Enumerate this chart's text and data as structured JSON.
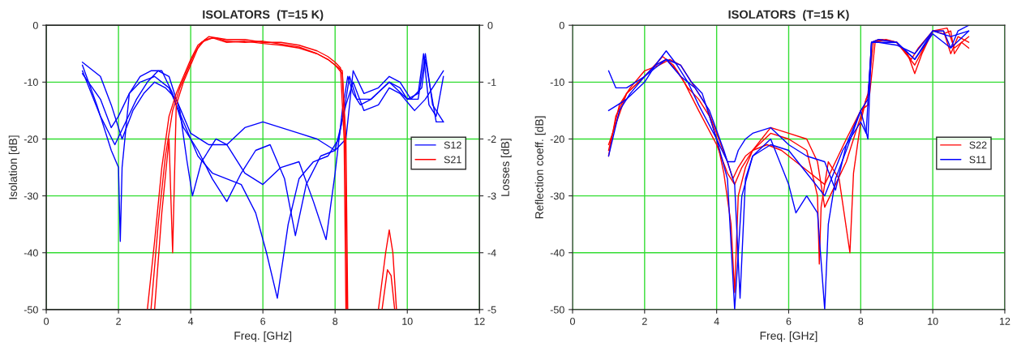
{
  "chart_data": [
    {
      "type": "line",
      "title": "ISOLATORS  (T=15 K)",
      "xlabel": "Freq. [GHz]",
      "ylabel": "Isolation [dB]",
      "y2label": "Losses [dB]",
      "xlim": [
        0,
        12
      ],
      "xticks": [
        0,
        2,
        4,
        6,
        8,
        10,
        12
      ],
      "ylim": [
        -50,
        0
      ],
      "yticks": [
        -50,
        -40,
        -30,
        -20,
        -10,
        0
      ],
      "y2lim": [
        -5,
        0
      ],
      "y2ticks": [
        -5,
        -4,
        -3,
        -2,
        -1,
        0
      ],
      "grid": true,
      "legend": "right",
      "series": [
        {
          "name": "S12",
          "color": "#0000ff",
          "x": [
            1,
            1.4,
            1.8,
            2.0,
            2.05,
            2.1,
            2.3,
            2.6,
            3.0,
            3.4,
            3.8,
            4.2,
            4.6,
            5.0,
            5.4,
            5.8,
            6.1,
            6.4,
            6.7,
            7.0,
            7.4,
            7.8,
            8.1,
            8.3,
            8.4,
            8.6,
            9.0,
            9.5,
            10.0,
            10.3,
            10.45,
            10.6,
            10.8,
            11
          ],
          "values": [
            -7,
            -14,
            -22,
            -25,
            -38,
            -25,
            -12,
            -10,
            -9,
            -11,
            -17,
            -23,
            -26,
            -27,
            -28,
            -33,
            -40,
            -48,
            -35,
            -27,
            -24,
            -23,
            -20,
            -13,
            -9,
            -13,
            -13,
            -10,
            -13,
            -12,
            -5,
            -14,
            -16,
            -9
          ]
        },
        {
          "color": "#0000ff",
          "x": [
            1,
            1.5,
            1.9,
            2.2,
            2.5,
            2.8,
            3.1,
            3.4,
            3.7,
            3.9,
            4.05,
            4.3,
            4.7,
            5.0,
            5.5,
            6.0,
            6.5,
            7.0,
            7.4,
            7.75,
            8.0,
            8.2,
            8.35,
            8.5,
            8.7,
            9.0,
            9.5,
            9.8,
            10.0,
            10.3,
            10.5,
            10.7,
            11
          ],
          "values": [
            -8,
            -16,
            -21,
            -17,
            -13,
            -10,
            -8,
            -9,
            -15,
            -24,
            -30,
            -24,
            -20,
            -21,
            -26,
            -28,
            -25,
            -24,
            -31,
            -37.7,
            -26,
            -15,
            -9,
            -12,
            -14,
            -13,
            -10,
            -11,
            -13,
            -13,
            -5,
            -14,
            -17
          ]
        },
        {
          "color": "#0000ff",
          "x": [
            1,
            1.5,
            1.8,
            2.0,
            2.3,
            2.6,
            2.9,
            3.2,
            3.5,
            3.8,
            4.2,
            4.6,
            5.0,
            5.4,
            5.8,
            6.2,
            6.6,
            6.9,
            7.2,
            7.6,
            8.0,
            8.3,
            8.5,
            8.8,
            9.2,
            9.5,
            9.8,
            10.2,
            10.5,
            11
          ],
          "values": [
            -8.5,
            -13,
            -18,
            -16,
            -12,
            -9,
            -8,
            -8,
            -12,
            -18,
            -22,
            -27,
            -31,
            -26,
            -22,
            -21,
            -27,
            -37,
            -28,
            -23,
            -22,
            -14,
            -10,
            -15,
            -14,
            -11,
            -12,
            -15,
            -13,
            -8
          ]
        },
        {
          "color": "#0000ff",
          "x": [
            1,
            1.5,
            1.8,
            2.1,
            2.4,
            2.7,
            3.0,
            3.3,
            3.6,
            4.0,
            4.5,
            5.0,
            5.5,
            6.0,
            6.5,
            7.0,
            7.5,
            8.0,
            8.3,
            8.5,
            8.8,
            9.2,
            9.5,
            9.8,
            10.1,
            10.4,
            10.5,
            10.8,
            11
          ],
          "values": [
            -6.5,
            -9,
            -14,
            -20,
            -15,
            -12,
            -10,
            -11,
            -13,
            -19,
            -21,
            -21,
            -18,
            -17,
            -18,
            -19,
            -20,
            -22,
            -20,
            -8,
            -12,
            -11,
            -9,
            -10,
            -13,
            -11,
            -6,
            -17,
            -17
          ]
        },
        {
          "name": "S21",
          "color": "#ff0000",
          "axis": "y2",
          "x": [
            2.8,
            3.0,
            3.2,
            3.4,
            3.6,
            3.8,
            4.0,
            4.2,
            4.5,
            5.0,
            5.5,
            6.0,
            6.5,
            7.0,
            7.5,
            7.8,
            8.0,
            8.15,
            8.25,
            8.3
          ],
          "values": [
            -5,
            -3.8,
            -2.5,
            -1.6,
            -1.2,
            -0.9,
            -0.6,
            -0.35,
            -0.2,
            -0.25,
            -0.25,
            -0.3,
            -0.3,
            -0.35,
            -0.45,
            -0.55,
            -0.65,
            -0.75,
            -2,
            -5
          ]
        },
        {
          "color": "#ff0000",
          "axis": "y2",
          "x": [
            2.9,
            3.1,
            3.3,
            3.5,
            3.7,
            3.9,
            4.1,
            4.3,
            4.6,
            5.0,
            5.5,
            6.0,
            6.5,
            7.0,
            7.5,
            7.8,
            8.0,
            8.2,
            8.28,
            8.33
          ],
          "values": [
            -5,
            -3.5,
            -2.3,
            -1.5,
            -1.1,
            -0.8,
            -0.5,
            -0.3,
            -0.22,
            -0.3,
            -0.28,
            -0.32,
            -0.35,
            -0.4,
            -0.5,
            -0.6,
            -0.7,
            -0.8,
            -2,
            -5
          ]
        },
        {
          "color": "#ff0000",
          "axis": "y2",
          "x": [
            3.0,
            3.2,
            3.4,
            3.5,
            3.6,
            3.8,
            4.0,
            4.2,
            4.4,
            4.7,
            5.0,
            5.5,
            6.0,
            6.5,
            7.0,
            7.5,
            7.8,
            8.0,
            8.2,
            8.3,
            8.35
          ],
          "values": [
            -5,
            -3.3,
            -2.0,
            -4.0,
            -1.4,
            -1.0,
            -0.7,
            -0.4,
            -0.25,
            -0.22,
            -0.28,
            -0.3,
            -0.28,
            -0.33,
            -0.38,
            -0.5,
            -0.6,
            -0.7,
            -0.85,
            -2,
            -5
          ]
        },
        {
          "color": "#ff0000",
          "axis": "y2",
          "x": [
            9.2,
            9.4,
            9.5,
            9.6,
            9.7
          ],
          "values": [
            -5,
            -4,
            -3.6,
            -4,
            -5
          ]
        },
        {
          "color": "#ff0000",
          "axis": "y2",
          "x": [
            9.3,
            9.45,
            9.55,
            9.65
          ],
          "values": [
            -5,
            -4.3,
            -4.4,
            -5
          ]
        }
      ]
    },
    {
      "type": "line",
      "title": "ISOLATORS  (T=15 K)",
      "xlabel": "Freq. [GHz]",
      "ylabel": "Reflection coeff. [dB]",
      "xlim": [
        0,
        12
      ],
      "xticks": [
        0,
        2,
        4,
        6,
        8,
        10,
        12
      ],
      "ylim": [
        -50,
        0
      ],
      "yticks": [
        -50,
        -40,
        -30,
        -20,
        -10,
        0
      ],
      "grid": true,
      "legend": "right",
      "series": [
        {
          "name": "S22",
          "color": "#ff0000",
          "x": [
            1,
            1.2,
            1.5,
            2,
            2.3,
            2.6,
            2.9,
            3.2,
            3.5,
            3.8,
            4.0,
            4.2,
            4.4,
            4.5,
            4.6,
            4.8,
            5.0,
            5.5,
            6.0,
            6.5,
            6.8,
            6.85,
            6.9,
            7.1,
            7.4,
            7.7,
            7.8,
            8.0,
            8.15,
            8.25,
            8.4,
            8.7,
            9.0,
            9.3,
            9.5,
            9.7,
            10.0,
            10.3,
            10.5,
            10.6,
            10.8,
            11
          ],
          "values": [
            -23,
            -16,
            -12,
            -9,
            -7,
            -6,
            -8,
            -11,
            -13,
            -16,
            -20,
            -26,
            -35,
            -47,
            -30,
            -25,
            -22,
            -19,
            -20,
            -22,
            -30,
            -42,
            -32,
            -24,
            -27,
            -40,
            -26,
            -17,
            -13,
            -12,
            -3,
            -2.5,
            -3,
            -5,
            -8.5,
            -5,
            -1,
            -1.5,
            -1,
            -5,
            -3,
            -4
          ]
        },
        {
          "color": "#ff0000",
          "x": [
            1,
            1.3,
            1.6,
            2,
            2.4,
            2.7,
            3.0,
            3.3,
            3.7,
            4.0,
            4.3,
            4.45,
            4.6,
            4.8,
            5.0,
            5.4,
            5.8,
            6.2,
            6.6,
            7.0,
            7.3,
            7.6,
            8.0,
            8.2,
            8.3,
            8.5,
            9.0,
            9.4,
            9.6,
            10.0,
            10.3,
            10.5,
            10.7,
            11
          ],
          "values": [
            -22,
            -14,
            -11,
            -8,
            -7,
            -6,
            -7,
            -10,
            -14,
            -19,
            -24,
            -27,
            -25,
            -23,
            -22,
            -21,
            -22,
            -24,
            -26,
            -28,
            -24,
            -20,
            -15,
            -14,
            -3,
            -2.5,
            -3,
            -6,
            -4,
            -1,
            -1,
            -5,
            -2,
            -3
          ]
        },
        {
          "color": "#ff0000",
          "x": [
            1,
            1.5,
            2,
            2.5,
            2.8,
            3.1,
            3.5,
            4.0,
            4.3,
            4.5,
            4.7,
            5.0,
            5.5,
            6.0,
            6.5,
            6.8,
            7.0,
            7.3,
            7.6,
            8.0,
            8.2,
            8.35,
            8.6,
            9.0,
            9.5,
            10,
            10.4,
            10.6,
            11
          ],
          "values": [
            -21,
            -12,
            -9,
            -5.5,
            -7,
            -10,
            -15,
            -21,
            -26,
            -28,
            -25,
            -22,
            -18,
            -19,
            -20,
            -24,
            -32,
            -28,
            -24,
            -16,
            -12,
            -3,
            -2.5,
            -3,
            -7,
            -1,
            -0.5,
            -4,
            -2
          ]
        },
        {
          "name": "S11",
          "color": "#0000ff",
          "x": [
            1,
            1.2,
            1.5,
            2,
            2.3,
            2.6,
            2.9,
            3.2,
            3.5,
            4.0,
            4.3,
            4.5,
            4.7,
            5.0,
            5.5,
            6.0,
            6.2,
            6.5,
            6.8,
            7.0,
            7.1,
            7.3,
            7.6,
            8.0,
            8.2,
            8.3,
            8.5,
            9.0,
            9.5,
            10,
            10.3,
            10.5,
            10.7,
            11
          ],
          "values": [
            -8,
            -11,
            -11,
            -9,
            -7,
            -4.5,
            -7,
            -10,
            -14,
            -20,
            -27,
            -50,
            -30,
            -23,
            -20,
            -28,
            -33,
            -30,
            -33,
            -50,
            -35,
            -27,
            -22,
            -15,
            -20,
            -3,
            -2.5,
            -3,
            -6,
            -1,
            -1,
            -4,
            -1,
            0
          ]
        },
        {
          "color": "#0000ff",
          "x": [
            1,
            1.5,
            2,
            2.3,
            2.6,
            3.0,
            3.3,
            3.6,
            4.0,
            4.3,
            4.5,
            4.6,
            4.8,
            5.0,
            5.5,
            6.0,
            6.5,
            7.0,
            7.3,
            7.6,
            8.0,
            8.2,
            8.3,
            8.5,
            9,
            9.5,
            10,
            10.5,
            11
          ],
          "values": [
            -15,
            -13,
            -10,
            -7,
            -6,
            -7,
            -10,
            -12,
            -20,
            -24,
            -24,
            -22,
            -20,
            -19,
            -18,
            -21,
            -23,
            -24,
            -29,
            -21,
            -15,
            -13,
            -3,
            -3,
            -3.5,
            -5,
            -1,
            -2,
            -1
          ]
        },
        {
          "color": "#0000ff",
          "x": [
            1,
            1.3,
            1.6,
            2,
            2.4,
            2.6,
            3.0,
            3.4,
            3.8,
            4.2,
            4.5,
            4.65,
            4.8,
            5.0,
            5.5,
            6.0,
            6.5,
            7.0,
            7.5,
            8.0,
            8.15,
            8.3,
            8.6,
            9,
            9.5,
            10,
            10.5,
            11
          ],
          "values": [
            -23,
            -15,
            -12,
            -9,
            -7,
            -6,
            -9,
            -11,
            -15,
            -22,
            -28,
            -48,
            -27,
            -23,
            -21,
            -22,
            -26,
            -30,
            -22,
            -17,
            -19,
            -3,
            -3,
            -3,
            -6,
            -1.5,
            -4,
            -1
          ]
        }
      ]
    }
  ]
}
